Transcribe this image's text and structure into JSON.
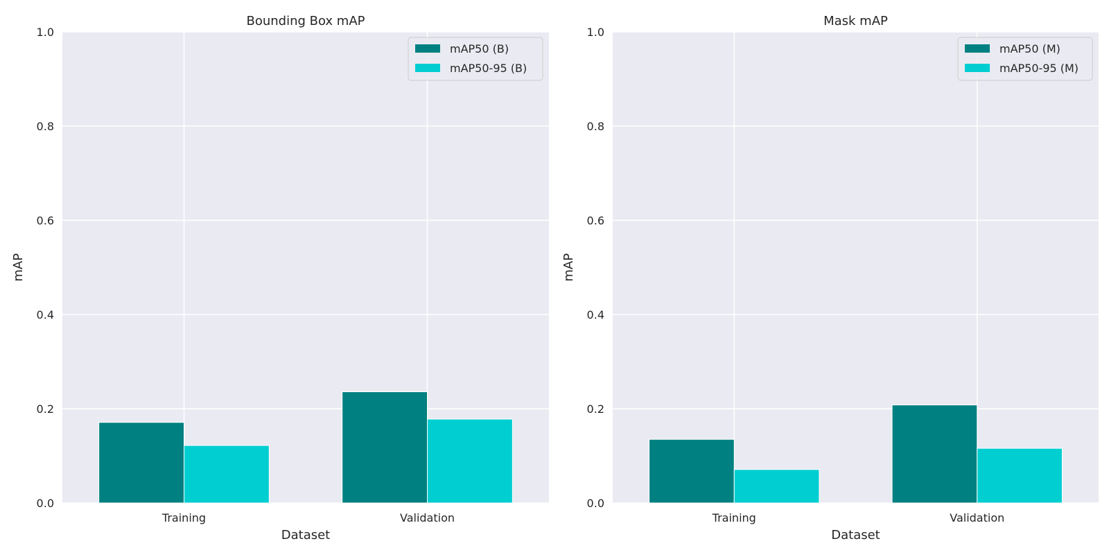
{
  "chart_data": [
    {
      "type": "bar",
      "title": "Bounding Box mAP",
      "xlabel": "Dataset",
      "ylabel": "mAP",
      "ylim": [
        0,
        1.0
      ],
      "yticks": [
        "0.0",
        "0.2",
        "0.4",
        "0.6",
        "0.8",
        "1.0"
      ],
      "categories": [
        "Training",
        "Validation"
      ],
      "series": [
        {
          "name": "mAP50 (B)",
          "color": "#008080",
          "values": [
            0.171,
            0.236
          ]
        },
        {
          "name": "mAP50-95 (B)",
          "color": "#00ced1",
          "values": [
            0.122,
            0.178
          ]
        }
      ],
      "grid": true,
      "legend": "top-right"
    },
    {
      "type": "bar",
      "title": "Mask mAP",
      "xlabel": "Dataset",
      "ylabel": "mAP",
      "ylim": [
        0,
        1.0
      ],
      "yticks": [
        "0.0",
        "0.2",
        "0.4",
        "0.6",
        "0.8",
        "1.0"
      ],
      "categories": [
        "Training",
        "Validation"
      ],
      "series": [
        {
          "name": "mAP50 (M)",
          "color": "#008080",
          "values": [
            0.135,
            0.208
          ]
        },
        {
          "name": "mAP50-95 (M)",
          "color": "#00ced1",
          "values": [
            0.071,
            0.116
          ]
        }
      ],
      "grid": true,
      "legend": "top-right"
    }
  ]
}
